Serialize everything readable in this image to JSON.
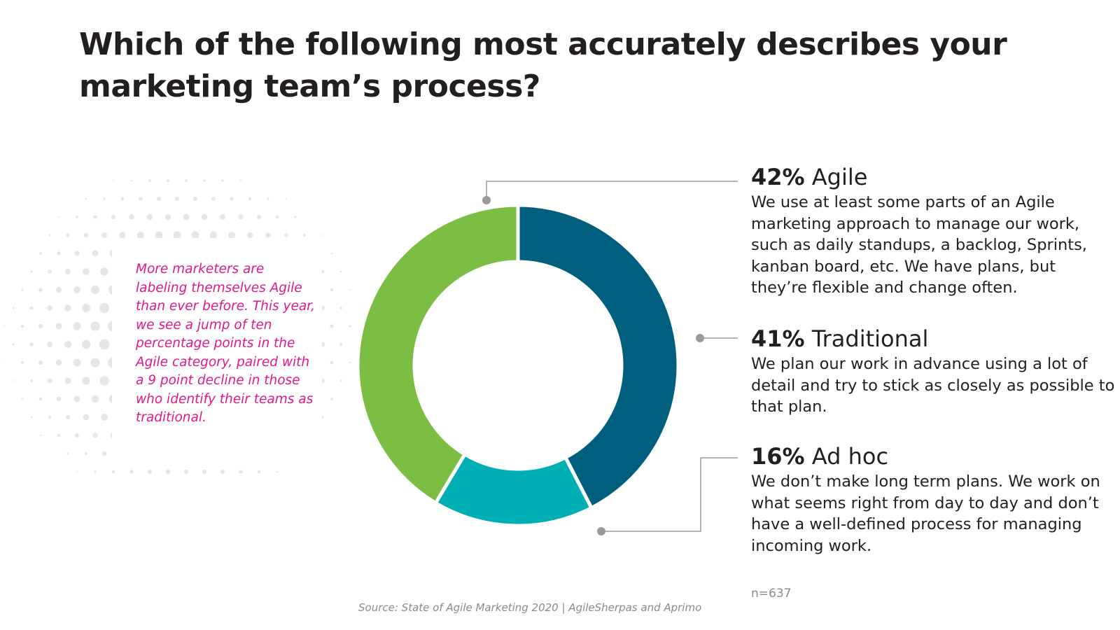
{
  "title": "Which of the following most accurately describes your marketing team’s process?",
  "note": "More marketers are labeling themselves Agile than ever before. This year, we see a jump of ten percentage points in the Agile category, paired with a 9 point decline in those who identify their teams as traditional.",
  "sample_size": "n=637",
  "source": "Source: State of Agile Marketing 2020 | AgileSherpas and Aprimo",
  "colors": {
    "agile": "#005f7f",
    "ad_hoc": "#00afb4",
    "traditional": "#7bbe43",
    "note_text": "#e0198a",
    "leader": "#9a9a9a",
    "dots": "#e6e6e6"
  },
  "chart_data": {
    "type": "pie",
    "title": "Which of the following most accurately describes your marketing team’s process?",
    "slices": [
      {
        "label": "Agile",
        "value": 42,
        "value_label": "42%",
        "color": "#005f7f",
        "description": "We use at least some parts of an Agile marketing approach to manage our work, such as daily standups, a backlog, Sprints, kanban board, etc. We have plans, but they’re flexible and change often."
      },
      {
        "label": "Ad hoc",
        "value": 16,
        "value_label": "16%",
        "color": "#00afb4",
        "description": "We don’t make long term plans. We work on what seems right from day to day and don’t have a well-defined process for managing incoming work."
      },
      {
        "label": "Traditional",
        "value": 41,
        "value_label": "41%",
        "color": "#7bbe43",
        "description": "We plan our work in advance using a lot of detail and try to stick as closely as possible to that plan."
      }
    ]
  }
}
